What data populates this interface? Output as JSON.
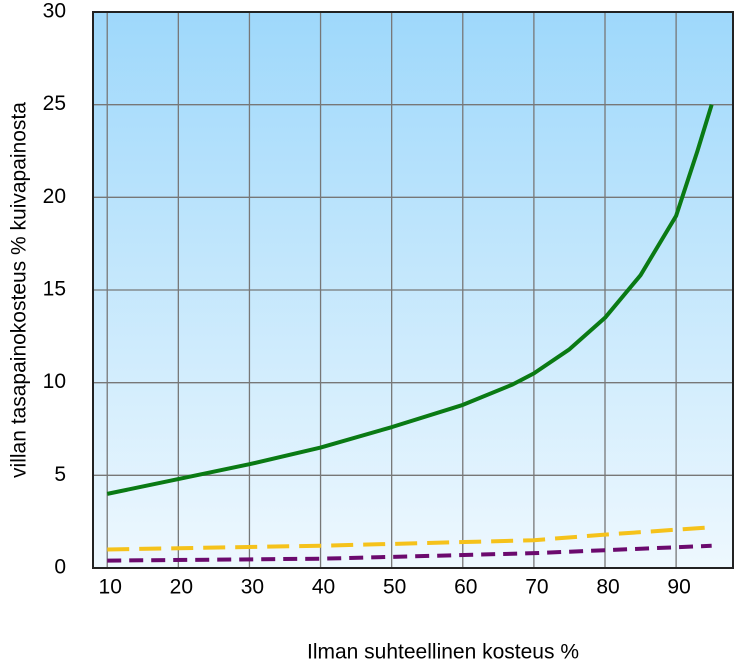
{
  "chart_data": {
    "type": "line",
    "xlabel": "Ilman suhteellinen kosteus %",
    "ylabel": "villan tasapainokosteus % kuivapainosta",
    "xlim": [
      8,
      98
    ],
    "xticks": [
      10,
      20,
      30,
      40,
      50,
      60,
      70,
      80,
      90
    ],
    "ylim": [
      0,
      30
    ],
    "yticks": [
      0,
      5,
      10,
      15,
      20,
      25,
      30
    ],
    "grid": true,
    "series": [
      {
        "color": "#0a7a14",
        "style": "solid",
        "x": [
          10,
          20,
          30,
          40,
          50,
          60,
          67,
          70,
          75,
          80,
          85,
          90,
          93,
          95
        ],
        "values": [
          4,
          4.8,
          5.6,
          6.5,
          7.6,
          8.8,
          9.9,
          10.5,
          11.8,
          13.5,
          15.8,
          19,
          22.5,
          25
        ]
      },
      {
        "color": "#f5c21b",
        "style": "dashed",
        "x": [
          10,
          40,
          70,
          80,
          95
        ],
        "values": [
          1.0,
          1.2,
          1.5,
          1.8,
          2.2
        ]
      },
      {
        "color": "#6b0a6e",
        "style": "dashed",
        "x": [
          10,
          40,
          70,
          95
        ],
        "values": [
          0.4,
          0.5,
          0.8,
          1.2
        ]
      }
    ]
  }
}
